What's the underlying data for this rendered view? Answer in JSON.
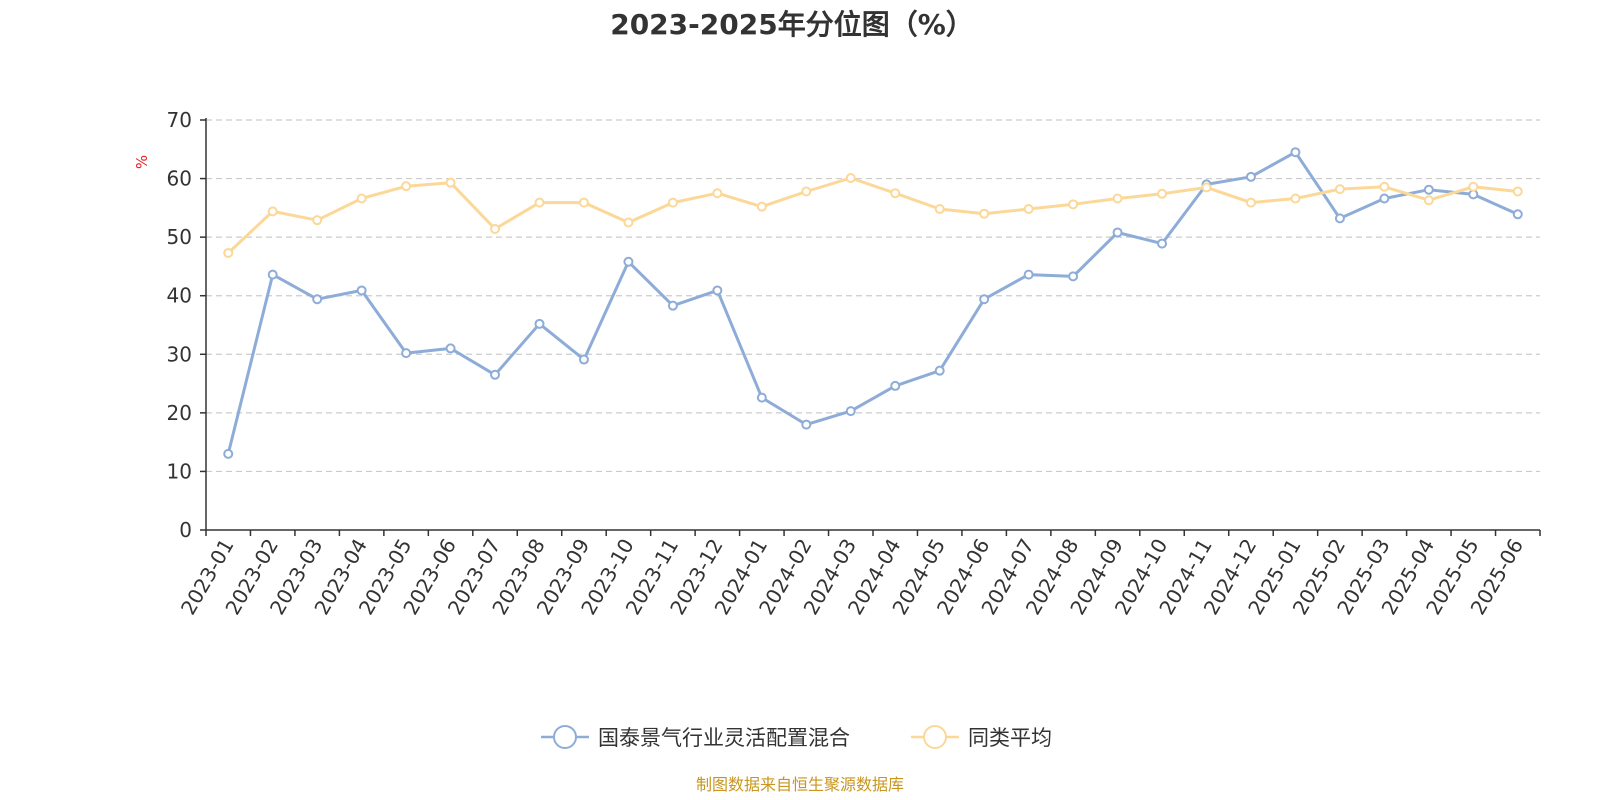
{
  "chart_data": {
    "type": "line",
    "title": "2023-2025年分位图（%）",
    "ylabel": "%",
    "ylim": [
      0,
      70
    ],
    "yticks": [
      0,
      10,
      20,
      30,
      40,
      50,
      60,
      70
    ],
    "grid": true,
    "legend_position": "bottom-center",
    "categories": [
      "2023-01",
      "2023-02",
      "2023-03",
      "2023-04",
      "2023-05",
      "2023-06",
      "2023-07",
      "2023-08",
      "2023-09",
      "2023-10",
      "2023-11",
      "2023-12",
      "2024-01",
      "2024-02",
      "2024-03",
      "2024-04",
      "2024-05",
      "2024-06",
      "2024-07",
      "2024-08",
      "2024-09",
      "2024-10",
      "2024-11",
      "2024-12",
      "2025-01",
      "2025-02",
      "2025-03",
      "2025-04",
      "2025-05",
      "2025-06"
    ],
    "series": [
      {
        "name": "国泰景气行业灵活配置混合",
        "color": "#8eacd8",
        "values": [
          13.0,
          43.6,
          39.4,
          40.9,
          30.2,
          31.0,
          26.5,
          35.2,
          29.1,
          45.8,
          38.3,
          40.9,
          22.6,
          18.0,
          20.3,
          24.6,
          27.2,
          39.4,
          43.6,
          43.3,
          50.8,
          48.9,
          59.0,
          60.3,
          64.5,
          53.2,
          56.6,
          58.1,
          57.3,
          53.9
        ]
      },
      {
        "name": "同类平均",
        "color": "#fcd898",
        "values": [
          47.3,
          54.4,
          52.9,
          56.6,
          58.7,
          59.3,
          51.4,
          55.9,
          55.9,
          52.5,
          55.9,
          57.5,
          55.2,
          57.8,
          60.1,
          57.5,
          54.8,
          54.0,
          54.8,
          55.6,
          56.6,
          57.4,
          58.5,
          55.9,
          56.6,
          58.2,
          58.6,
          56.3,
          58.6,
          57.8
        ]
      }
    ]
  },
  "source_text": "制图数据来自恒生聚源数据库",
  "source_color": "#c8961e",
  "unit_color": "#e0242a"
}
